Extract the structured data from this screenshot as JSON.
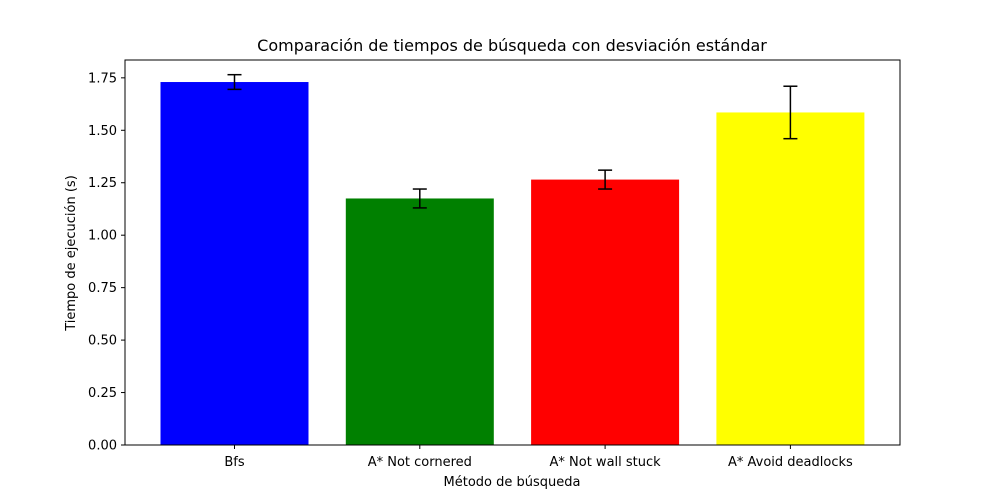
{
  "chart_data": {
    "type": "bar",
    "title": "Comparación de tiempos de búsqueda con desviación estándar",
    "xlabel": "Método de búsqueda",
    "ylabel": "Tiempo de ejecución (s)",
    "categories": [
      "Bfs",
      "A* Not cornered",
      "A* Not wall stuck",
      "A* Avoid deadlocks"
    ],
    "values": [
      1.73,
      1.175,
      1.265,
      1.585
    ],
    "errors": [
      0.035,
      0.045,
      0.045,
      0.125
    ],
    "colors": [
      "#0000ff",
      "#008000",
      "#ff0000",
      "#ffff00"
    ],
    "ylim": [
      0,
      1.835
    ],
    "yticks": [
      0.0,
      0.25,
      0.5,
      0.75,
      1.0,
      1.25,
      1.5,
      1.75
    ],
    "ytick_labels": [
      "0.00",
      "0.25",
      "0.50",
      "0.75",
      "1.00",
      "1.25",
      "1.50",
      "1.75"
    ],
    "grid": false,
    "error_bar_color": "#000000"
  }
}
